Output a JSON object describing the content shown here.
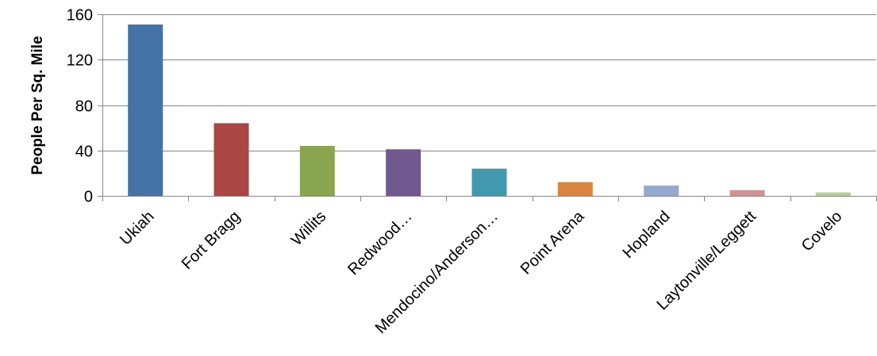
{
  "chart_data": {
    "type": "bar",
    "title": "",
    "xlabel": "",
    "ylabel": "People Per Sq. Mile",
    "ylim": [
      0,
      160
    ],
    "yticks": [
      0,
      40,
      80,
      120,
      160
    ],
    "grid": true,
    "legend": "none",
    "categories": [
      "Ukiah",
      "Fort Bragg",
      "Willits",
      "Redwood…",
      "Mendocino/Anderson…",
      "Point Arena",
      "Hopland",
      "Laytonville/Leggett",
      "Covelo"
    ],
    "values": [
      151,
      64,
      44,
      41,
      24,
      12,
      9,
      5,
      3
    ],
    "colors": [
      "#4572A7",
      "#AA4643",
      "#89A54E",
      "#71588F",
      "#4198AF",
      "#DB843D",
      "#93A9CF",
      "#D19392",
      "#B9CD96"
    ]
  }
}
